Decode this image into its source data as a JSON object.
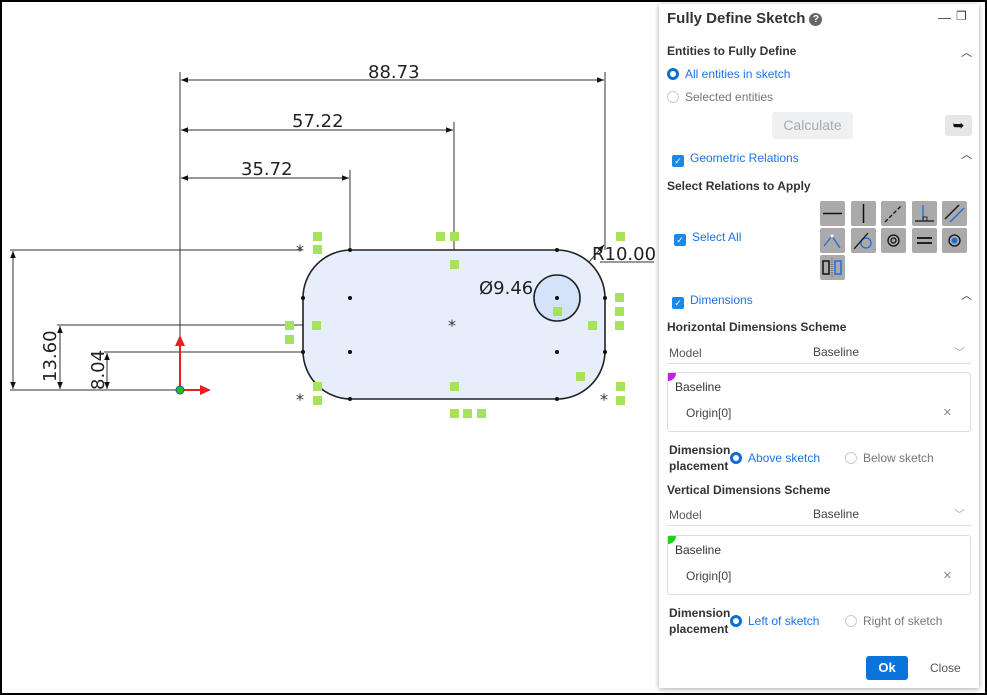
{
  "sketch": {
    "dimensions": [
      "88.73",
      "57.22",
      "35.72",
      "13.60",
      "8.04",
      "Ø9.46",
      "R10.00"
    ],
    "marker_color": "#a6e35a",
    "fill_color": "#e6eefc"
  },
  "panel": {
    "title": "Fully Define Sketch",
    "help_icon": "?",
    "entities": {
      "header": "Entities to Fully Define",
      "options": [
        "All entities in sketch",
        "Selected entities"
      ],
      "selected": "All entities in sketch",
      "calculate_label": "Calculate"
    },
    "geometric": {
      "label": "Geometric Relations",
      "checked": true,
      "select_header": "Select Relations to Apply",
      "select_all_label": "Select All",
      "relations": [
        "horizontal",
        "vertical",
        "collinear",
        "perpendicular",
        "parallel",
        "midpoint",
        "tangent",
        "concentric",
        "equal",
        "coradial",
        "symmetric"
      ]
    },
    "dimensions": {
      "label": "Dimensions",
      "checked": true,
      "horizontal": {
        "header": "Horizontal Dimensions Scheme",
        "model_label": "Model",
        "model_value": "Baseline",
        "baseline_label": "Baseline",
        "baseline_item": "Origin[0]",
        "corner_color": "#c020f0",
        "placement_label_1": "Dimension",
        "placement_label_2": "placement",
        "options": [
          "Above sketch",
          "Below sketch"
        ],
        "selected": "Above sketch"
      },
      "vertical": {
        "header": "Vertical Dimensions Scheme",
        "model_label": "Model",
        "model_value": "Baseline",
        "baseline_label": "Baseline",
        "baseline_item": "Origin[0]",
        "corner_color": "#20d020",
        "placement_label_1": "Dimension",
        "placement_label_2": "placement",
        "options": [
          "Left of sketch",
          "Right of sketch"
        ],
        "selected": "Left of sketch"
      }
    },
    "ok_label": "Ok",
    "close_label": "Close"
  }
}
